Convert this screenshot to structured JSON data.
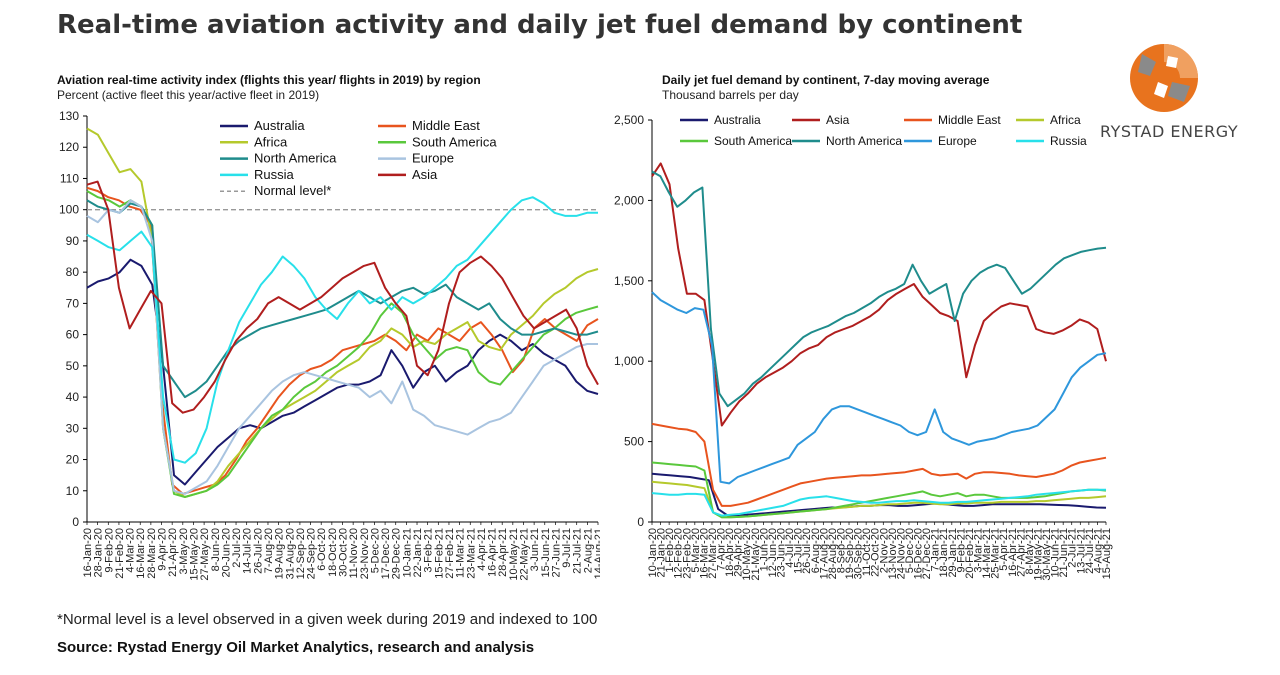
{
  "page": {
    "title": "Real-time aviation activity and daily jet fuel demand by continent",
    "footnote": "*Normal level is a level observed in a given week during 2019 and indexed to 100",
    "source": "Source: Rystad Energy Oil Market Analytics, research and analysis",
    "logo_text": "RYSTAD ENERGY"
  },
  "colors": {
    "Australia": "#1a1a6e",
    "Middle East": "#e8541e",
    "Africa": "#b5c92c",
    "South America": "#5ac83c",
    "North America": "#1f8c8c",
    "Europe": "#a9c4e0",
    "Russia": "#28e0ea",
    "Asia": "#b01e1e",
    "Europe_right": "#2e97dc",
    "Normal level*": "#999999",
    "logo_orange": "#e8731e",
    "logo_grey": "#8a8a8a"
  },
  "chart_data": [
    {
      "type": "line",
      "title": "Aviation real-time activity index (flights this year/ flights in 2019) by region",
      "subtitle": "Percent (active fleet this year/active fleet in 2019)",
      "ylim": [
        0,
        130
      ],
      "yticks": [
        0,
        10,
        20,
        30,
        40,
        50,
        60,
        70,
        80,
        90,
        100,
        110,
        120,
        130
      ],
      "legend_position": "top",
      "x_count": 83,
      "xtick_labels": [
        "16-Jan-20",
        "28-Jan-20",
        "9-Feb-20",
        "21-Feb-20",
        "4-Mar-20",
        "16-Mar-20",
        "28-Mar-20",
        "9-Apr-20",
        "21-Apr-20",
        "3-May-20",
        "15-May-20",
        "27-May-20",
        "8-Jun-20",
        "20-Jun-20",
        "2-Jul-20",
        "14-Jul-20",
        "26-Jul-20",
        "7-Aug-20",
        "19-Aug-20",
        "31-Aug-20",
        "12-Sep-20",
        "24-Sep-20",
        "6-Oct-20",
        "18-Oct-20",
        "30-Oct-20",
        "11-Nov-20",
        "23-Nov-20",
        "5-Dec-20",
        "17-Dec-20",
        "29-Dec-20",
        "10-Jan-21",
        "22-Jan-21",
        "3-Feb-21",
        "15-Feb-21",
        "27-Feb-21",
        "11-Mar-21",
        "23-Mar-21",
        "4-Apr-21",
        "16-Apr-21",
        "28-Apr-21",
        "10-May-21",
        "22-May-21",
        "3-Jun-21",
        "15-Jun-21",
        "27-Jun-21",
        "9-Jul-21",
        "21-Jul-21",
        "2-Aug-21",
        "14-Aug-21"
      ],
      "reference_line": {
        "name": "Normal level*",
        "value": 100
      },
      "series": [
        {
          "name": "Australia",
          "values": [
            75,
            77,
            78,
            80,
            84,
            82,
            76,
            50,
            15,
            12,
            16,
            20,
            24,
            27,
            30,
            31,
            30,
            32,
            34,
            35,
            37,
            39,
            41,
            43,
            44,
            44,
            45,
            47,
            55,
            50,
            43,
            48,
            50,
            45,
            48,
            50,
            55,
            58,
            60,
            58,
            55,
            57,
            54,
            52,
            50,
            45,
            42,
            41
          ]
        },
        {
          "name": "Middle East",
          "values": [
            107,
            106,
            104,
            103,
            101,
            100,
            95,
            40,
            12,
            9,
            10,
            11,
            12,
            15,
            20,
            26,
            30,
            35,
            40,
            44,
            47,
            49,
            50,
            52,
            55,
            56,
            57,
            58,
            60,
            58,
            55,
            60,
            58,
            62,
            60,
            58,
            62,
            64,
            60,
            55,
            48,
            52,
            62,
            65,
            62,
            60,
            58,
            63,
            65
          ]
        },
        {
          "name": "Africa",
          "values": [
            126,
            124,
            118,
            112,
            113,
            109,
            90,
            30,
            10,
            8,
            9,
            10,
            13,
            18,
            22,
            26,
            30,
            33,
            36,
            38,
            40,
            42,
            45,
            48,
            50,
            52,
            56,
            58,
            62,
            60,
            56,
            58,
            57,
            60,
            62,
            64,
            58,
            56,
            55,
            60,
            63,
            66,
            70,
            73,
            75,
            78,
            80,
            81
          ]
        },
        {
          "name": "South America",
          "values": [
            106,
            104,
            103,
            101,
            103,
            101,
            95,
            30,
            9,
            8,
            9,
            10,
            12,
            15,
            20,
            25,
            30,
            34,
            36,
            40,
            43,
            45,
            48,
            50,
            53,
            56,
            60,
            66,
            70,
            67,
            60,
            56,
            52,
            55,
            56,
            55,
            48,
            45,
            44,
            48,
            52,
            56,
            60,
            62,
            65,
            67,
            68,
            69
          ]
        },
        {
          "name": "North America",
          "values": [
            103,
            101,
            100,
            99,
            102,
            101,
            95,
            50,
            45,
            40,
            42,
            45,
            50,
            55,
            58,
            60,
            62,
            63,
            64,
            65,
            66,
            67,
            68,
            70,
            72,
            74,
            72,
            70,
            72,
            74,
            75,
            73,
            74,
            76,
            72,
            70,
            68,
            70,
            65,
            62,
            60,
            60,
            61,
            62,
            61,
            60,
            60,
            61
          ]
        },
        {
          "name": "Europe",
          "values": [
            98,
            96,
            100,
            99,
            103,
            101,
            90,
            30,
            10,
            9,
            11,
            13,
            18,
            24,
            30,
            34,
            38,
            42,
            45,
            47,
            48,
            47,
            46,
            45,
            44,
            43,
            40,
            42,
            38,
            45,
            36,
            34,
            31,
            30,
            29,
            28,
            30,
            32,
            33,
            35,
            40,
            45,
            50,
            52,
            54,
            56,
            57,
            57
          ]
        },
        {
          "name": "Russia",
          "values": [
            92,
            90,
            88,
            87,
            90,
            93,
            88,
            40,
            20,
            19,
            22,
            30,
            45,
            55,
            64,
            70,
            76,
            80,
            85,
            82,
            78,
            72,
            68,
            65,
            70,
            74,
            70,
            72,
            68,
            72,
            70,
            72,
            75,
            78,
            82,
            84,
            88,
            92,
            96,
            100,
            103,
            104,
            102,
            99,
            98,
            98,
            99,
            99
          ]
        },
        {
          "name": "Asia",
          "values": [
            108,
            109,
            100,
            75,
            62,
            68,
            74,
            70,
            38,
            35,
            36,
            40,
            45,
            52,
            58,
            62,
            65,
            70,
            72,
            70,
            68,
            70,
            72,
            75,
            78,
            80,
            82,
            83,
            75,
            70,
            66,
            50,
            47,
            55,
            70,
            80,
            83,
            85,
            82,
            78,
            72,
            66,
            62,
            64,
            66,
            68,
            62,
            50,
            44
          ]
        }
      ]
    },
    {
      "type": "line",
      "title": "Daily jet fuel demand by continent, 7-day moving average",
      "subtitle": "Thousand barrels per day",
      "ylim": [
        0,
        2500
      ],
      "yticks": [
        0,
        500,
        1000,
        1500,
        2000,
        2500
      ],
      "ytick_labels": [
        "0",
        "500",
        "1,000",
        "1,500",
        "2,000",
        "2,500"
      ],
      "legend_position": "top",
      "x_count": 84,
      "xtick_labels": [
        "10-Jan-20",
        "21-Jan-20",
        "1-Feb-20",
        "12-Feb-20",
        "23-Feb-20",
        "5-Mar-20",
        "16-Mar-20",
        "27-Mar-20",
        "7-Apr-20",
        "18-Apr-20",
        "29-Apr-20",
        "10-May-20",
        "21-May-20",
        "1-Jun-20",
        "12-Jun-20",
        "23-Jun-20",
        "4-Jul-20",
        "15-Jul-20",
        "26-Jul-20",
        "6-Aug-20",
        "17-Aug-20",
        "28-Aug-20",
        "8-Sep-20",
        "19-Sep-20",
        "30-Sep-20",
        "11-Oct-20",
        "22-Oct-20",
        "2-Nov-20",
        "13-Nov-20",
        "24-Nov-20",
        "5-Dec-20",
        "16-Dec-20",
        "27-Dec-20",
        "7-Jan-21",
        "18-Jan-21",
        "29-Jan-21",
        "9-Feb-21",
        "20-Feb-21",
        "3-Mar-21",
        "14-Mar-21",
        "25-Mar-21",
        "5-Apr-21",
        "16-Apr-21",
        "27-Apr-21",
        "8-May-21",
        "19-May-21",
        "30-May-21",
        "10-Jun-21",
        "21-Jun-21",
        "2-Jul-21",
        "13-Jul-21",
        "24-Jul-21",
        "4-Aug-21",
        "15-Aug-21"
      ],
      "series": [
        {
          "name": "Australia",
          "values": [
            300,
            295,
            290,
            285,
            280,
            270,
            260,
            80,
            40,
            40,
            45,
            50,
            55,
            60,
            65,
            70,
            75,
            80,
            85,
            90,
            90,
            95,
            100,
            100,
            105,
            105,
            100,
            100,
            105,
            110,
            115,
            110,
            105,
            100,
            100,
            105,
            110,
            110,
            110,
            110,
            110,
            110,
            108,
            106,
            104,
            100,
            95,
            90,
            88
          ]
        },
        {
          "name": "Asia",
          "values": [
            2150,
            2230,
            2100,
            1700,
            1420,
            1420,
            1380,
            1000,
            600,
            680,
            750,
            800,
            860,
            900,
            930,
            960,
            1000,
            1050,
            1080,
            1100,
            1150,
            1180,
            1200,
            1220,
            1250,
            1280,
            1320,
            1380,
            1420,
            1450,
            1480,
            1400,
            1350,
            1300,
            1280,
            1250,
            900,
            1100,
            1250,
            1300,
            1340,
            1360,
            1350,
            1340,
            1200,
            1180,
            1170,
            1190,
            1220,
            1260,
            1240,
            1200,
            1000
          ]
        },
        {
          "name": "Middle East",
          "values": [
            610,
            600,
            590,
            580,
            575,
            560,
            500,
            200,
            100,
            100,
            110,
            120,
            140,
            160,
            180,
            200,
            220,
            240,
            250,
            260,
            270,
            275,
            280,
            285,
            290,
            290,
            295,
            300,
            305,
            310,
            320,
            330,
            300,
            290,
            295,
            300,
            270,
            300,
            310,
            310,
            305,
            300,
            290,
            285,
            280,
            290,
            300,
            320,
            350,
            370,
            380,
            390,
            400
          ]
        },
        {
          "name": "Africa",
          "values": [
            250,
            245,
            240,
            235,
            230,
            220,
            210,
            60,
            30,
            30,
            32,
            35,
            40,
            45,
            50,
            55,
            60,
            65,
            70,
            75,
            80,
            85,
            90,
            95,
            100,
            100,
            105,
            110,
            110,
            115,
            120,
            120,
            115,
            110,
            110,
            115,
            115,
            120,
            120,
            120,
            125,
            125,
            125,
            125,
            130,
            130,
            135,
            140,
            145,
            150,
            150,
            155,
            160
          ]
        },
        {
          "name": "South America",
          "values": [
            370,
            365,
            360,
            355,
            350,
            345,
            320,
            60,
            30,
            30,
            32,
            35,
            40,
            45,
            50,
            55,
            60,
            65,
            70,
            75,
            80,
            90,
            100,
            110,
            120,
            130,
            140,
            150,
            160,
            170,
            180,
            190,
            170,
            160,
            170,
            180,
            160,
            170,
            170,
            160,
            150,
            150,
            150,
            150,
            155,
            160,
            170,
            180,
            190,
            195,
            200,
            200,
            195
          ]
        },
        {
          "name": "North America",
          "values": [
            2180,
            2150,
            2050,
            1960,
            2000,
            2050,
            2080,
            1200,
            800,
            720,
            760,
            800,
            860,
            900,
            950,
            1000,
            1050,
            1100,
            1150,
            1180,
            1200,
            1220,
            1250,
            1280,
            1300,
            1330,
            1360,
            1400,
            1430,
            1450,
            1480,
            1600,
            1500,
            1420,
            1450,
            1480,
            1250,
            1420,
            1500,
            1550,
            1580,
            1600,
            1580,
            1500,
            1420,
            1450,
            1500,
            1550,
            1600,
            1640,
            1660,
            1680,
            1690,
            1700,
            1705
          ]
        },
        {
          "name": "Europe",
          "values": [
            1430,
            1380,
            1350,
            1320,
            1300,
            1330,
            1320,
            1100,
            250,
            240,
            280,
            300,
            320,
            340,
            360,
            380,
            400,
            480,
            520,
            560,
            640,
            700,
            720,
            720,
            700,
            680,
            660,
            640,
            620,
            600,
            560,
            540,
            560,
            700,
            560,
            520,
            500,
            480,
            500,
            510,
            520,
            540,
            560,
            570,
            580,
            600,
            650,
            700,
            800,
            900,
            960,
            1000,
            1040,
            1050
          ]
        },
        {
          "name": "Russia",
          "values": [
            180,
            175,
            170,
            170,
            175,
            175,
            170,
            60,
            40,
            45,
            50,
            60,
            70,
            80,
            90,
            100,
            120,
            140,
            150,
            155,
            160,
            150,
            140,
            130,
            125,
            120,
            120,
            125,
            130,
            130,
            135,
            130,
            125,
            120,
            120,
            125,
            125,
            130,
            135,
            140,
            145,
            150,
            155,
            160,
            170,
            175,
            180,
            185,
            190,
            195,
            200,
            200,
            200
          ]
        }
      ]
    }
  ]
}
